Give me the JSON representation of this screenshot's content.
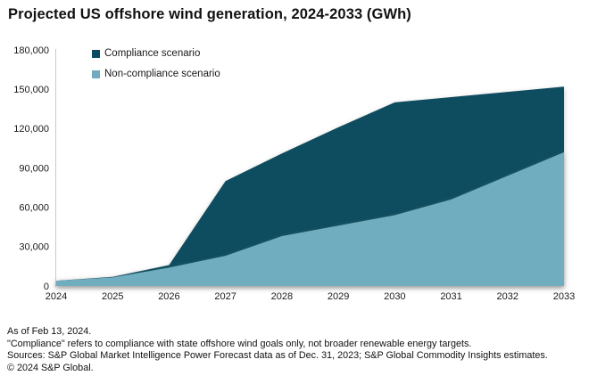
{
  "title": "Projected US offshore wind generation, 2024-2033 (GWh)",
  "chart_data": {
    "type": "area",
    "x": [
      2024,
      2025,
      2026,
      2027,
      2028,
      2029,
      2030,
      2031,
      2032,
      2033
    ],
    "series": [
      {
        "name": "Compliance scenario",
        "color": "#0b4d5e",
        "values": [
          4000,
          7000,
          16000,
          80000,
          101000,
          121000,
          140000,
          144000,
          148000,
          152000
        ]
      },
      {
        "name": "Non-compliance scenario",
        "color": "#6fadbe",
        "values": [
          4000,
          6500,
          14000,
          23000,
          38000,
          46000,
          54000,
          66000,
          84000,
          102000
        ]
      }
    ],
    "title": "Projected US offshore wind generation, 2024-2033 (GWh)",
    "xlabel": "",
    "ylabel": "",
    "ylim": [
      0,
      180000
    ],
    "ytick_step": 30000,
    "ytick_labels": [
      "0",
      "30,000",
      "60,000",
      "90,000",
      "120,000",
      "150,000",
      "180,000"
    ],
    "grid": false,
    "legend_position": "top-left-inside",
    "areas_overlapping": true
  },
  "footer": {
    "line1": "As of Feb 13, 2024.",
    "line2": "\"Compliance\" refers to compliance with state offshore wind goals only, not broader renewable energy targets.",
    "line3": "Sources: S&P Global Market Intelligence Power Forecast data as of Dec. 31, 2023; S&P Global Commodity Insights estimates.",
    "line4": "© 2024 S&P Global."
  }
}
